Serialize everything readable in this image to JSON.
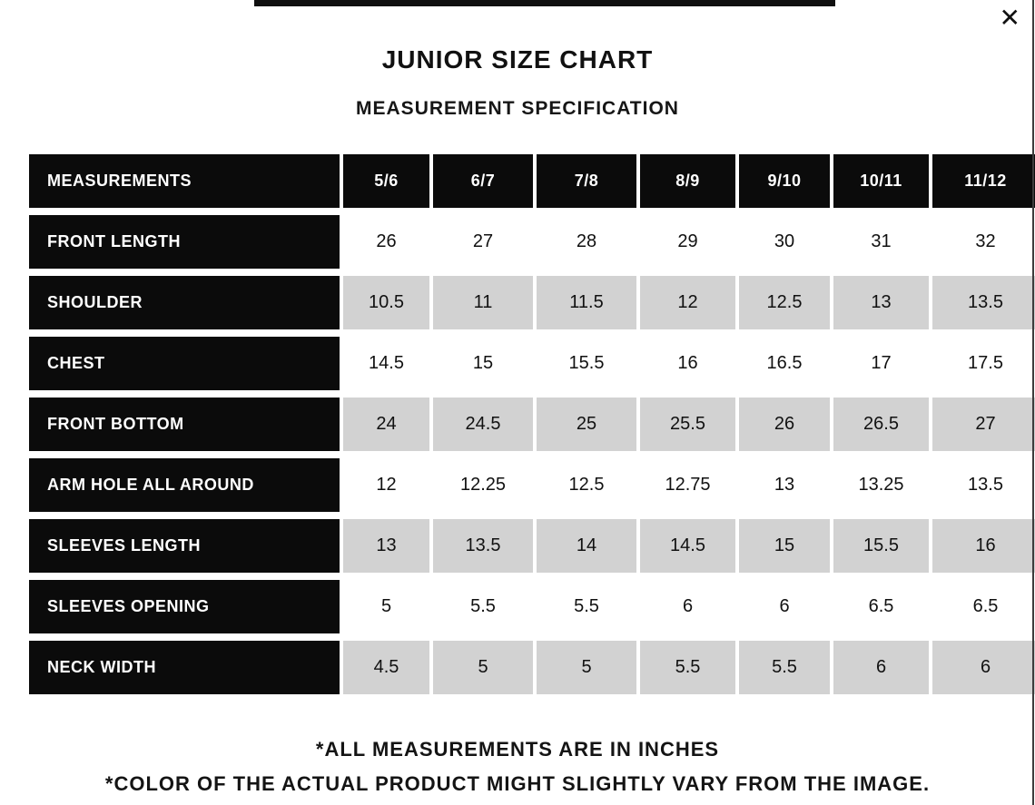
{
  "modal": {
    "close_icon": "✕",
    "title": "JUNIOR SIZE CHART",
    "subtitle": "MEASUREMENT SPECIFICATION"
  },
  "table": {
    "header": [
      "MEASUREMENTS",
      "5/6",
      "6/7",
      "7/8",
      "8/9",
      "9/10",
      "10/11",
      "11/12"
    ],
    "rows": [
      {
        "label": "FRONT LENGTH",
        "values": [
          "26",
          "27",
          "28",
          "29",
          "30",
          "31",
          "32"
        ]
      },
      {
        "label": "SHOULDER",
        "values": [
          "10.5",
          "11",
          "11.5",
          "12",
          "12.5",
          "13",
          "13.5"
        ]
      },
      {
        "label": "CHEST",
        "values": [
          "14.5",
          "15",
          "15.5",
          "16",
          "16.5",
          "17",
          "17.5"
        ]
      },
      {
        "label": "FRONT BOTTOM",
        "values": [
          "24",
          "24.5",
          "25",
          "25.5",
          "26",
          "26.5",
          "27"
        ]
      },
      {
        "label": "ARM HOLE ALL AROUND",
        "values": [
          "12",
          "12.25",
          "12.5",
          "12.75",
          "13",
          "13.25",
          "13.5"
        ]
      },
      {
        "label": "SLEEVES LENGTH",
        "values": [
          "13",
          "13.5",
          "14",
          "14.5",
          "15",
          "15.5",
          "16"
        ]
      },
      {
        "label": "SLEEVES OPENING",
        "values": [
          "5",
          "5.5",
          "5.5",
          "6",
          "6",
          "6.5",
          "6.5"
        ]
      },
      {
        "label": "NECK WIDTH",
        "values": [
          "4.5",
          "5",
          "5",
          "5.5",
          "5.5",
          "6",
          "6"
        ]
      }
    ]
  },
  "footnotes": [
    "*ALL MEASUREMENTS ARE IN INCHES",
    "*COLOR OF THE ACTUAL PRODUCT MIGHT SLIGHTLY VARY FROM THE IMAGE."
  ],
  "colors": {
    "header_cell_bg": "#0b0b0b",
    "header_cell_text": "#ffffff",
    "row_bg": "#ffffff",
    "row_alt_bg": "#d2d2d2",
    "text": "#111111"
  }
}
